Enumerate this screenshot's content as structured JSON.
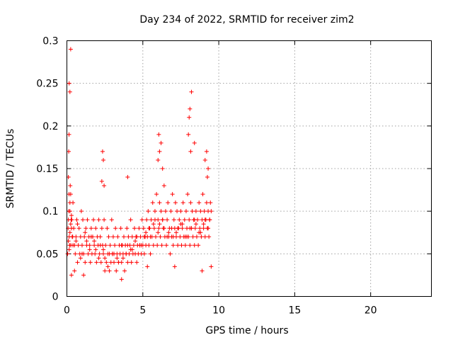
{
  "chart_data": {
    "type": "scatter",
    "title": "Day 234 of 2022, SRMTID for receiver zim2",
    "xlabel": "GPS time / hours",
    "ylabel": "SRMTID / TECUs",
    "xlim": [
      0,
      24
    ],
    "ylim": [
      0,
      0.3
    ],
    "xticks": [
      0,
      5,
      10,
      15,
      20
    ],
    "xtick_labels": [
      "0",
      "5",
      "10",
      "15",
      "20"
    ],
    "yticks": [
      0,
      0.05,
      0.1,
      0.15,
      0.2,
      0.25,
      0.3
    ],
    "ytick_labels": [
      "0",
      "0.05",
      "0.1",
      "0.15",
      "0.2",
      "0.25",
      "0.3"
    ],
    "grid": true,
    "marker": "+",
    "series": [
      {
        "name": "SRMTID",
        "color": "#ff0000",
        "x": [
          0.05,
          0.1,
          0.15,
          0.2,
          0.25,
          0.3,
          0.12,
          0.18,
          0.22,
          0.28,
          0.35,
          0.4,
          0.08,
          0.14,
          0.2,
          0.26,
          0.32,
          0.38,
          0.45,
          0.5,
          0.55,
          0.6,
          0.65,
          0.7,
          0.75,
          0.8,
          0.85,
          0.9,
          0.95,
          1.0,
          1.05,
          1.1,
          1.15,
          1.2,
          1.25,
          1.3,
          1.35,
          1.4,
          1.45,
          1.5,
          1.55,
          1.6,
          1.65,
          1.7,
          1.75,
          1.8,
          1.85,
          1.9,
          1.95,
          2.0,
          2.05,
          2.1,
          2.15,
          2.2,
          2.25,
          2.3,
          2.35,
          2.4,
          2.45,
          2.5,
          2.55,
          2.6,
          2.65,
          2.7,
          2.75,
          2.8,
          2.85,
          2.9,
          2.95,
          3.0,
          3.05,
          3.1,
          3.15,
          3.2,
          3.25,
          3.3,
          3.35,
          3.4,
          3.45,
          3.5,
          3.55,
          3.6,
          3.65,
          3.7,
          3.75,
          3.8,
          3.85,
          3.9,
          3.95,
          4.0,
          4.05,
          4.1,
          4.15,
          4.2,
          4.25,
          4.3,
          4.35,
          4.4,
          4.45,
          4.5,
          4.55,
          4.6,
          4.65,
          4.7,
          4.75,
          4.8,
          4.85,
          4.9,
          4.95,
          5.0,
          5.05,
          5.1,
          5.15,
          5.2,
          5.25,
          5.3,
          5.35,
          5.4,
          5.45,
          5.5,
          5.55,
          5.6,
          5.65,
          5.7,
          5.75,
          5.8,
          5.85,
          5.9,
          5.95,
          6.0,
          6.05,
          6.1,
          6.15,
          6.2,
          6.25,
          6.3,
          6.35,
          6.4,
          6.45,
          6.5,
          6.55,
          6.6,
          6.65,
          6.7,
          6.75,
          6.8,
          6.85,
          6.9,
          6.95,
          7.0,
          7.05,
          7.1,
          7.15,
          7.2,
          7.25,
          7.3,
          7.35,
          7.4,
          7.45,
          7.5,
          7.55,
          7.6,
          7.65,
          7.7,
          7.75,
          7.8,
          7.85,
          7.9,
          7.95,
          8.0,
          8.05,
          8.1,
          8.15,
          8.2,
          8.25,
          8.3,
          8.35,
          8.4,
          8.45,
          8.5,
          8.55,
          8.6,
          8.65,
          8.7,
          8.75,
          8.8,
          8.85,
          8.9,
          8.95,
          9.0,
          9.05,
          9.1,
          9.15,
          9.2,
          9.25,
          9.3,
          9.35,
          9.4,
          9.45,
          9.5,
          0.1,
          0.2,
          0.15,
          0.25,
          0.3,
          0.6,
          0.9,
          1.2,
          1.5,
          1.8,
          2.1,
          2.4,
          2.7,
          3.0,
          3.3,
          3.6,
          3.9,
          4.2,
          4.5,
          4.8,
          5.1,
          5.4,
          5.7,
          6.0,
          6.3,
          6.6,
          6.9,
          7.2,
          7.5,
          7.8,
          8.1,
          8.4,
          8.7,
          9.0,
          9.3,
          0.4,
          1.0,
          1.6,
          2.2,
          2.8,
          3.4,
          4.0,
          4.6,
          5.2,
          5.8,
          6.4,
          7.0,
          7.6,
          8.2,
          8.8,
          9.4,
          0.7,
          1.3,
          1.9,
          2.5,
          3.1,
          3.7,
          4.3,
          4.9,
          5.5,
          6.1,
          6.7,
          7.3,
          7.9,
          8.5,
          9.1,
          0.15,
          0.2,
          0.25,
          2.35,
          2.4,
          6.05,
          6.1,
          6.2,
          8.05,
          8.1,
          8.15,
          8.2,
          9.2,
          9.3,
          0.1,
          0.12,
          0.14,
          4.0,
          6.0,
          6.3,
          8.0,
          8.4,
          9.1,
          9.25,
          2.3,
          2.45,
          0.3,
          0.5,
          1.1,
          3.6,
          5.3,
          7.1,
          8.9,
          9.5
        ],
        "y": [
          0.05,
          0.09,
          0.07,
          0.11,
          0.12,
          0.08,
          0.1,
          0.06,
          0.13,
          0.09,
          0.07,
          0.11,
          0.08,
          0.12,
          0.1,
          0.06,
          0.09,
          0.07,
          0.08,
          0.06,
          0.05,
          0.07,
          0.09,
          0.04,
          0.06,
          0.08,
          0.05,
          0.07,
          0.1,
          0.06,
          0.09,
          0.05,
          0.07,
          0.04,
          0.08,
          0.06,
          0.09,
          0.05,
          0.07,
          0.06,
          0.04,
          0.08,
          0.05,
          0.07,
          0.09,
          0.06,
          0.05,
          0.08,
          0.04,
          0.07,
          0.06,
          0.09,
          0.05,
          0.07,
          0.04,
          0.08,
          0.06,
          0.05,
          0.09,
          0.03,
          0.06,
          0.04,
          0.08,
          0.05,
          0.07,
          0.03,
          0.06,
          0.04,
          0.09,
          0.05,
          0.07,
          0.04,
          0.06,
          0.08,
          0.03,
          0.05,
          0.07,
          0.04,
          0.06,
          0.05,
          0.08,
          0.04,
          0.06,
          0.05,
          0.07,
          0.03,
          0.06,
          0.05,
          0.08,
          0.04,
          0.07,
          0.05,
          0.06,
          0.09,
          0.04,
          0.07,
          0.05,
          0.06,
          0.08,
          0.05,
          0.07,
          0.04,
          0.06,
          0.05,
          0.08,
          0.06,
          0.07,
          0.05,
          0.09,
          0.06,
          0.08,
          0.05,
          0.07,
          0.06,
          0.09,
          0.07,
          0.1,
          0.06,
          0.08,
          0.05,
          0.09,
          0.07,
          0.11,
          0.06,
          0.08,
          0.1,
          0.07,
          0.12,
          0.06,
          0.09,
          0.08,
          0.11,
          0.07,
          0.1,
          0.06,
          0.09,
          0.08,
          0.13,
          0.07,
          0.1,
          0.06,
          0.09,
          0.11,
          0.07,
          0.08,
          0.05,
          0.1,
          0.07,
          0.12,
          0.06,
          0.09,
          0.08,
          0.11,
          0.07,
          0.1,
          0.06,
          0.08,
          0.09,
          0.07,
          0.1,
          0.06,
          0.08,
          0.11,
          0.07,
          0.09,
          0.06,
          0.1,
          0.08,
          0.12,
          0.07,
          0.09,
          0.06,
          0.11,
          0.08,
          0.1,
          0.07,
          0.09,
          0.06,
          0.08,
          0.1,
          0.07,
          0.09,
          0.06,
          0.11,
          0.08,
          0.1,
          0.07,
          0.09,
          0.12,
          0.08,
          0.1,
          0.07,
          0.09,
          0.11,
          0.08,
          0.1,
          0.07,
          0.09,
          0.11,
          0.1,
          0.065,
          0.075,
          0.055,
          0.085,
          0.095,
          0.065,
          0.045,
          0.075,
          0.055,
          0.065,
          0.045,
          0.055,
          0.035,
          0.05,
          0.045,
          0.06,
          0.05,
          0.055,
          0.065,
          0.06,
          0.07,
          0.08,
          0.085,
          0.075,
          0.09,
          0.07,
          0.08,
          0.075,
          0.085,
          0.07,
          0.08,
          0.09,
          0.075,
          0.085,
          0.08,
          0.06,
          0.05,
          0.07,
          0.06,
          0.05,
          0.04,
          0.06,
          0.07,
          0.075,
          0.09,
          0.08,
          0.07,
          0.085,
          0.08,
          0.075,
          0.09,
          0.085,
          0.065,
          0.055,
          0.045,
          0.05,
          0.045,
          0.055,
          0.06,
          0.07,
          0.085,
          0.075,
          0.08,
          0.07,
          0.085,
          0.09,
          0.25,
          0.24,
          0.29,
          0.17,
          0.16,
          0.19,
          0.17,
          0.18,
          0.21,
          0.22,
          0.17,
          0.24,
          0.17,
          0.15,
          0.14,
          0.17,
          0.19,
          0.14,
          0.16,
          0.15,
          0.19,
          0.18,
          0.16,
          0.14,
          0.135,
          0.13,
          0.025,
          0.03,
          0.025,
          0.02,
          0.035,
          0.035,
          0.03,
          0.035
        ]
      }
    ]
  }
}
